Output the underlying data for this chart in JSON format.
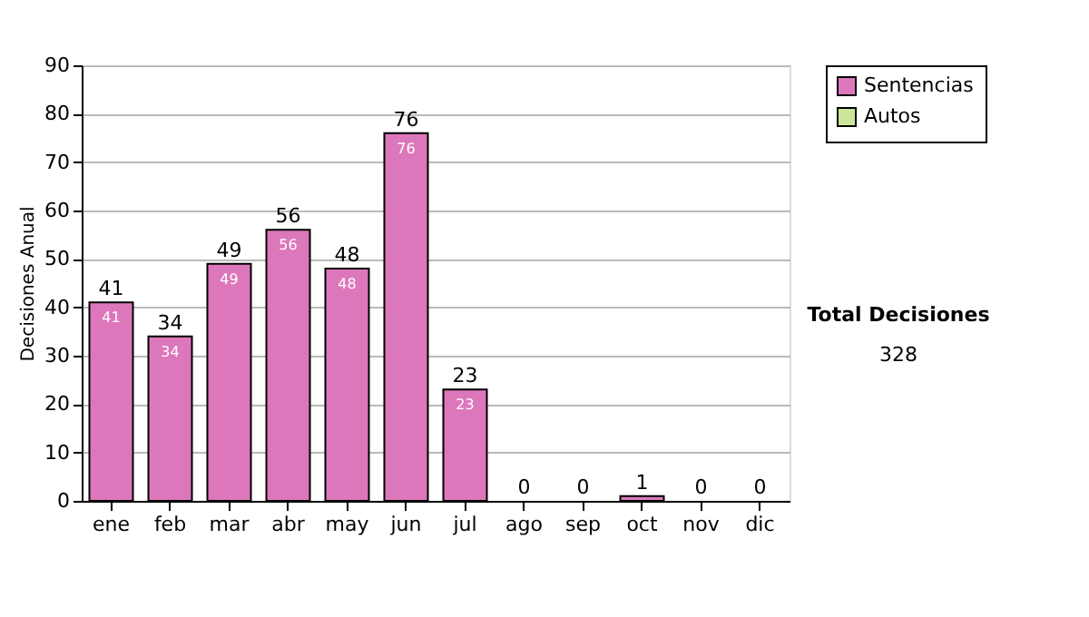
{
  "chart_data": {
    "type": "bar",
    "ylabel": "Decisiones Anual",
    "categories": [
      "ene",
      "feb",
      "mar",
      "abr",
      "may",
      "jun",
      "jul",
      "ago",
      "sep",
      "oct",
      "nov",
      "dic"
    ],
    "stacked": true,
    "series": [
      {
        "name": "Sentencias",
        "color": "#dd77bb",
        "values": [
          41,
          34,
          49,
          56,
          48,
          76,
          23,
          0,
          0,
          1,
          0,
          0
        ],
        "value_labels": [
          "41",
          "34",
          "49",
          "56",
          "48",
          "76",
          "23",
          null,
          null,
          null,
          null,
          null
        ]
      },
      {
        "name": "Autos",
        "color": "#cce699",
        "values": [
          0,
          0,
          0,
          0,
          0,
          0,
          0,
          0,
          0,
          0,
          0,
          0
        ]
      }
    ],
    "totals": [
      "41",
      "34",
      "49",
      "56",
      "48",
      "76",
      "23",
      "0",
      "0",
      "1",
      "0",
      "0"
    ],
    "ylim": [
      0,
      90
    ],
    "yticks": [
      0,
      10,
      20,
      30,
      40,
      50,
      60,
      70,
      80,
      90
    ],
    "grid": "y",
    "legend": "right",
    "annotations": [
      "Total Decisiones",
      "328"
    ]
  }
}
